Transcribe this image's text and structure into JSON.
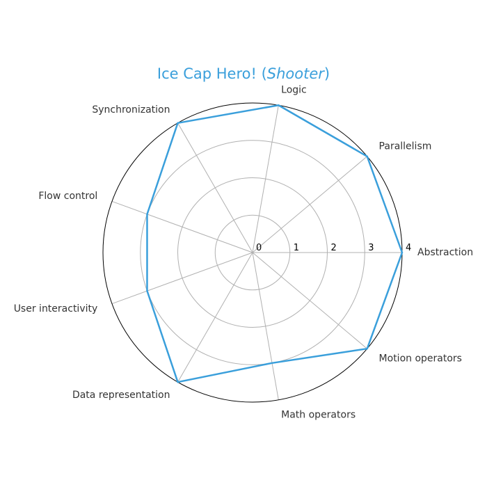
{
  "chart_data": {
    "type": "radar",
    "title": {
      "prefix": "Ice Cap Hero! (",
      "italic": "Shooter",
      "suffix": ")"
    },
    "categories": [
      "Abstraction",
      "Parallelism",
      "Logic",
      "Synchronization",
      "Flow control",
      "User interactivity",
      "Data representation",
      "Math operators",
      "Motion operators"
    ],
    "series": [
      {
        "values": [
          4,
          4,
          4,
          4,
          3,
          3,
          4,
          3,
          4
        ],
        "color": "#3a9fdb"
      }
    ],
    "rlim": [
      0,
      4
    ],
    "rticks": [
      0,
      1,
      2,
      3,
      4
    ],
    "grid": true,
    "colors": {
      "series": "#3a9fdb",
      "title": "#3a9fdb",
      "grid": "#b0b0b0",
      "frame": "#000000"
    }
  }
}
